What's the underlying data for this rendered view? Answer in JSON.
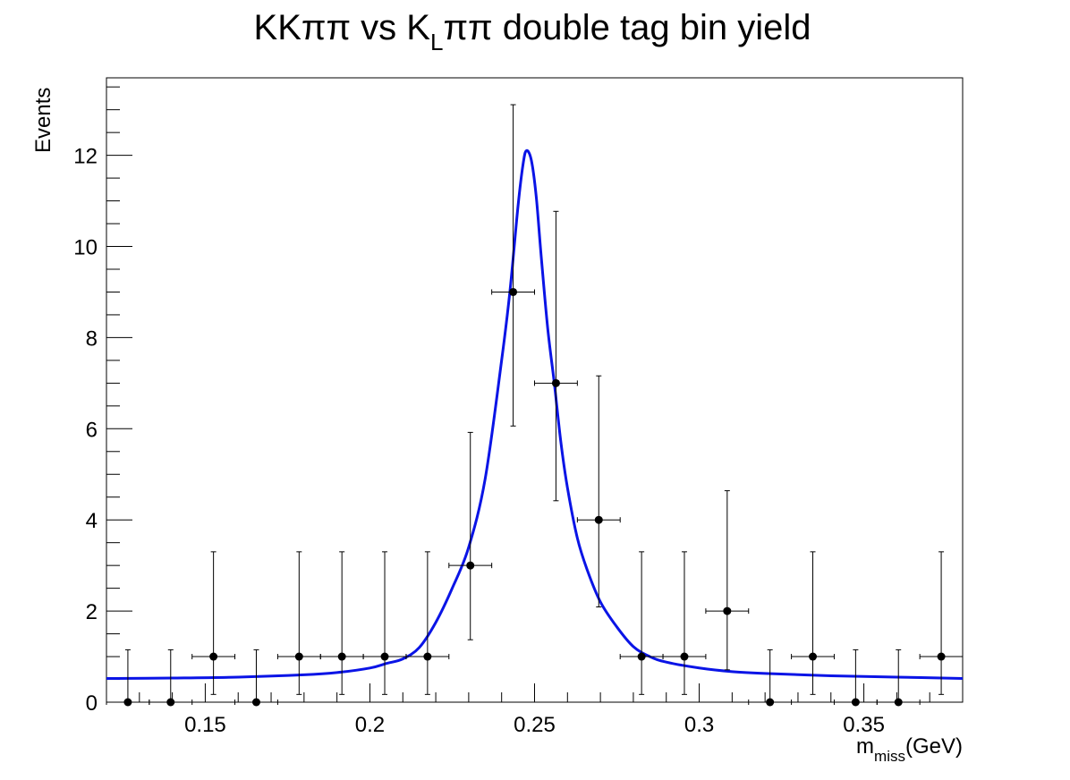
{
  "chart_data": {
    "type": "scatter",
    "title": {
      "prefix": "KKππ vs K",
      "subscript": "L",
      "suffix": "ππ double tag bin yield"
    },
    "xlabel": {
      "main": "m",
      "subscript": "miss",
      "unit": "(GeV)"
    },
    "ylabel": "Events",
    "xlim": [
      0.12,
      0.38
    ],
    "ylim": [
      0,
      13.7
    ],
    "x_ticks": [
      0.15,
      0.2,
      0.25,
      0.3,
      0.35
    ],
    "x_tick_labels": [
      "0.15",
      "0.2",
      "0.25",
      "0.3",
      "0.35"
    ],
    "y_ticks": [
      0,
      2,
      4,
      6,
      8,
      10,
      12
    ],
    "y_tick_labels": [
      "0",
      "2",
      "4",
      "6",
      "8",
      "10",
      "12"
    ],
    "bin_width": 0.013,
    "grid": false,
    "series": [
      {
        "type": "points_with_errors",
        "color": "#000000",
        "x": [
          0.1265,
          0.1395,
          0.1525,
          0.1655,
          0.1785,
          0.1915,
          0.2045,
          0.2175,
          0.2305,
          0.2435,
          0.2565,
          0.2695,
          0.2825,
          0.2955,
          0.3085,
          0.3215,
          0.3345,
          0.3475,
          0.3605,
          0.3735
        ],
        "y": [
          0,
          0,
          1,
          0,
          1,
          1,
          1,
          1,
          3,
          9,
          7,
          4,
          1,
          1,
          2,
          0,
          1,
          0,
          0,
          1
        ],
        "err_low": [
          0,
          0,
          0.83,
          0,
          0.83,
          0.83,
          0.83,
          0.83,
          1.63,
          2.94,
          2.58,
          1.91,
          0.83,
          0.83,
          1.29,
          0,
          0.83,
          0,
          0,
          0.83
        ],
        "err_high": [
          1.15,
          1.15,
          2.3,
          1.15,
          2.3,
          2.3,
          2.3,
          2.3,
          2.92,
          4.11,
          3.77,
          3.16,
          2.3,
          2.3,
          2.64,
          1.15,
          2.3,
          1.15,
          1.15,
          2.3
        ]
      },
      {
        "type": "fit_curve",
        "color": "#0a14e6",
        "x": [
          0.12,
          0.14,
          0.16,
          0.18,
          0.19,
          0.2,
          0.205,
          0.21,
          0.215,
          0.22,
          0.225,
          0.23,
          0.235,
          0.24,
          0.2425,
          0.245,
          0.2465,
          0.2475,
          0.249,
          0.2505,
          0.252,
          0.254,
          0.256,
          0.258,
          0.26,
          0.263,
          0.266,
          0.27,
          0.275,
          0.28,
          0.285,
          0.29,
          0.3,
          0.31,
          0.32,
          0.34,
          0.36,
          0.38
        ],
        "y": [
          0.52,
          0.53,
          0.55,
          0.6,
          0.65,
          0.75,
          0.85,
          0.95,
          1.2,
          1.75,
          2.5,
          3.4,
          4.9,
          7.5,
          9.0,
          10.9,
          11.8,
          12.1,
          11.9,
          11.1,
          9.8,
          8.2,
          7.0,
          5.7,
          4.7,
          3.6,
          2.9,
          2.2,
          1.65,
          1.22,
          1.0,
          0.88,
          0.75,
          0.67,
          0.63,
          0.58,
          0.55,
          0.52
        ]
      }
    ]
  }
}
